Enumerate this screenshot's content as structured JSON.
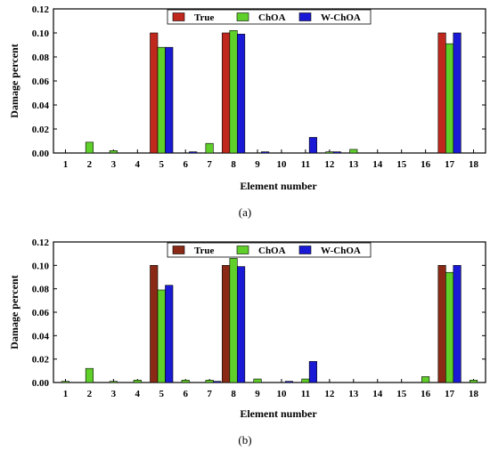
{
  "chart_data": [
    {
      "type": "bar",
      "panel_label": "(a)",
      "xlabel": "Element number",
      "ylabel": "Damage percent",
      "categories": [
        "1",
        "2",
        "3",
        "4",
        "5",
        "6",
        "7",
        "8",
        "9",
        "10",
        "11",
        "12",
        "13",
        "14",
        "15",
        "16",
        "17",
        "18"
      ],
      "ylim": [
        0,
        0.12
      ],
      "yticks": [
        "0.00",
        "0.02",
        "0.04",
        "0.06",
        "0.08",
        "0.10",
        "0.12"
      ],
      "legend_position": "top-center",
      "series": [
        {
          "name": "True",
          "color": "#c0281d",
          "values": [
            0,
            0,
            0,
            0,
            0.1,
            0,
            0,
            0.1,
            0,
            0,
            0,
            0,
            0,
            0,
            0,
            0,
            0.1,
            0
          ]
        },
        {
          "name": "ChOA",
          "color": "#5fcf2a",
          "values": [
            0,
            0.009,
            0.002,
            0,
            0.088,
            0,
            0.008,
            0.102,
            0,
            0,
            0,
            0.001,
            0.003,
            0,
            0,
            0,
            0.091,
            0
          ]
        },
        {
          "name": "W-ChOA",
          "color": "#1a1ad6",
          "values": [
            0,
            0,
            0,
            0,
            0.088,
            0.001,
            0,
            0.099,
            0.001,
            0,
            0.013,
            0.001,
            0,
            0,
            0,
            0,
            0.1,
            0
          ]
        }
      ]
    },
    {
      "type": "bar",
      "panel_label": "(b)",
      "xlabel": "Element number",
      "ylabel": "Damage percent",
      "categories": [
        "1",
        "2",
        "3",
        "4",
        "5",
        "6",
        "7",
        "8",
        "9",
        "10",
        "11",
        "12",
        "13",
        "14",
        "15",
        "16",
        "17",
        "18"
      ],
      "ylim": [
        0,
        0.12
      ],
      "yticks": [
        "0.00",
        "0.02",
        "0.04",
        "0.06",
        "0.08",
        "0.10",
        "0.12"
      ],
      "legend_position": "top-center",
      "series": [
        {
          "name": "True",
          "color": "#8a2a16",
          "values": [
            0,
            0,
            0,
            0,
            0.1,
            0,
            0,
            0.1,
            0,
            0,
            0,
            0,
            0,
            0,
            0,
            0,
            0.1,
            0
          ]
        },
        {
          "name": "ChOA",
          "color": "#5fcf2a",
          "values": [
            0.001,
            0.012,
            0.001,
            0.002,
            0.079,
            0.002,
            0.002,
            0.106,
            0.003,
            0,
            0.003,
            0,
            0,
            0,
            0,
            0.005,
            0.094,
            0.002
          ]
        },
        {
          "name": "W-ChOA",
          "color": "#1a1ad6",
          "values": [
            0,
            0,
            0,
            0,
            0.083,
            0,
            0.001,
            0.099,
            0,
            0.001,
            0.018,
            0,
            0,
            0,
            0,
            0,
            0.1,
            0
          ]
        }
      ]
    }
  ]
}
